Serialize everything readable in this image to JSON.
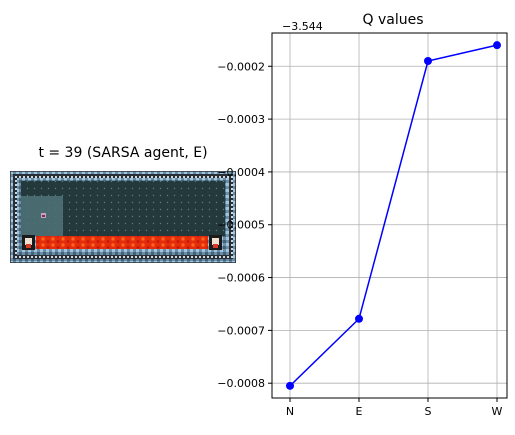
{
  "left_panel": {
    "title": "t = 39 (SARSA agent, E)",
    "image_name": "gridworld-render"
  },
  "chart_data": {
    "type": "line",
    "title": "Q values",
    "xlabel": "",
    "ylabel": "",
    "y_offset_label": "−3.544",
    "categories": [
      "N",
      "E",
      "S",
      "W"
    ],
    "series": [
      {
        "values": [
          -0.000805,
          -0.000678,
          -0.00019,
          -0.00016
        ],
        "color": "#0000ff"
      }
    ],
    "y_ticks": [
      -0.0008,
      -0.0007,
      -0.0006,
      -0.0005,
      -0.0004,
      -0.0003,
      -0.0002
    ],
    "y_tick_labels": [
      "−0.0008",
      "−0.0007",
      "−0.0006",
      "−0.0005",
      "−0.0004",
      "−0.0003",
      "−0.0002"
    ],
    "ylim": [
      -0.000828,
      -0.000137
    ],
    "grid": true,
    "legend": "none"
  }
}
